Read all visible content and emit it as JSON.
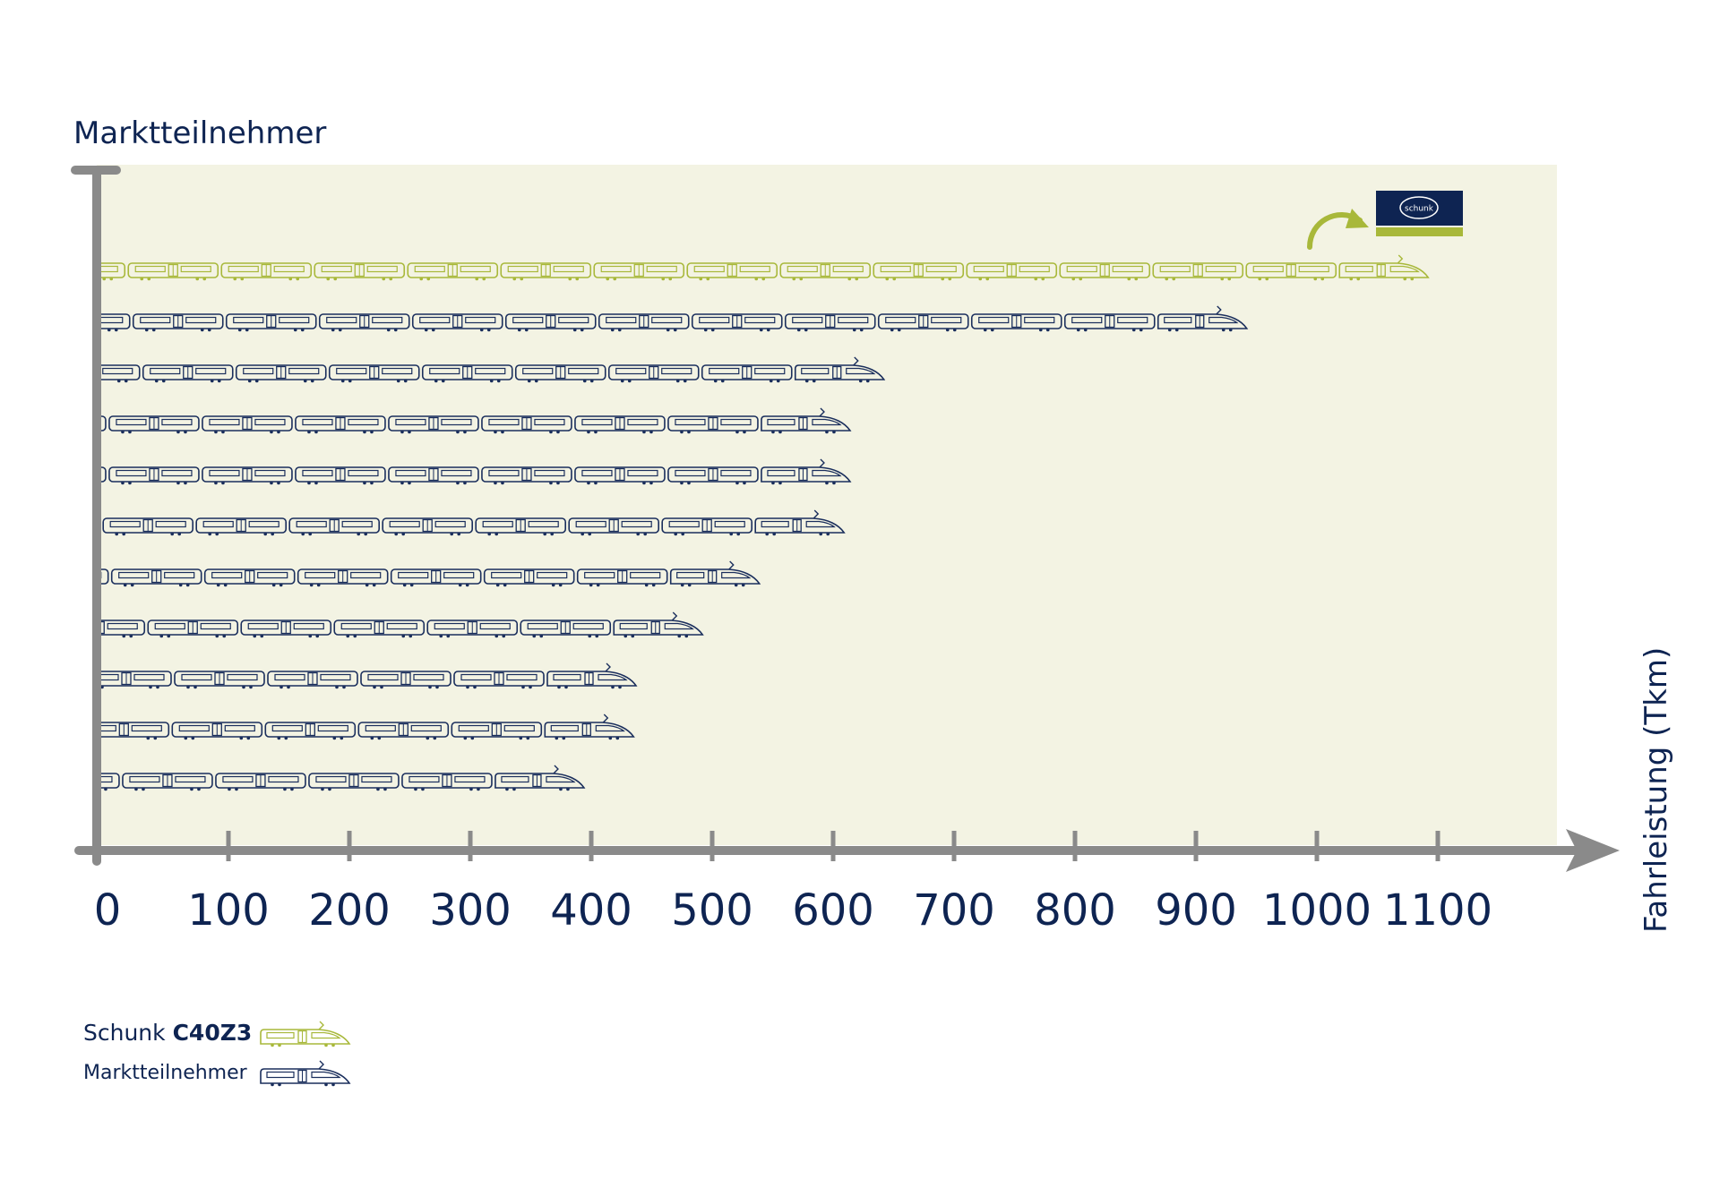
{
  "chart_data": {
    "type": "bar",
    "ylabel": "Marktteilnehmer",
    "xlabel": "Fahrleistung (Tkm)",
    "xlim": [
      0,
      1100
    ],
    "xticks": [
      "0",
      "100",
      "200",
      "300",
      "400",
      "500",
      "600",
      "700",
      "800",
      "900",
      "1000",
      "1100"
    ],
    "series": [
      {
        "name": "Schunk C40Z3",
        "values": [
          1075
        ]
      },
      {
        "name": "Marktteilnehmer",
        "values": [
          925,
          625,
          597,
          597,
          592,
          522,
          475,
          420,
          418,
          377
        ]
      }
    ],
    "legend": {
      "position": "bottom-left",
      "entries": [
        {
          "prefix": "Schunk ",
          "bold": "C40Z3"
        },
        {
          "prefix": "Marktteilnehmer",
          "bold": ""
        }
      ]
    },
    "colors": {
      "schunk": "#a8b83a",
      "participants": "#1a2e5c",
      "axis": "#8a8a8a",
      "plot_background": "#f3f3e3",
      "logo_background": "#0e2452"
    },
    "logo_text": "schunk"
  }
}
